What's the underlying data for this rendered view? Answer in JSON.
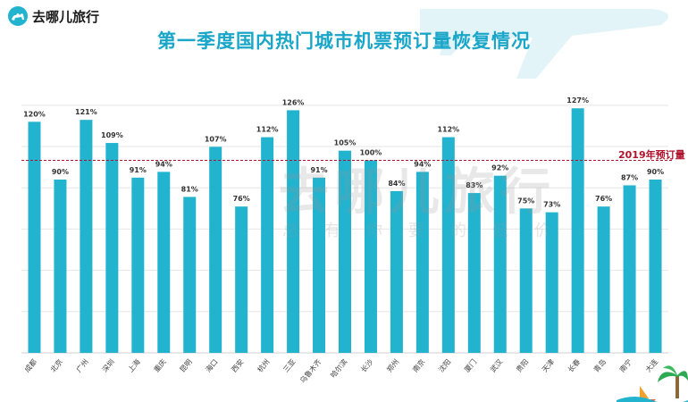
{
  "brand": {
    "name": "去哪儿旅行"
  },
  "watermark": {
    "main": "去哪儿旅行",
    "sub": "总有你要的低价"
  },
  "colors": {
    "bar": "#22b3cf",
    "title": "#1aa6c8",
    "reference": "#b1122c",
    "grid": "#e6e6e6"
  },
  "chart_data": {
    "type": "bar",
    "title": "第一季度国内热门城市机票预订量恢复情况",
    "xlabel": "",
    "ylabel": "",
    "ylim": [
      0,
      135
    ],
    "unit": "%",
    "reference_line": {
      "value": 100,
      "label": "2019年预订量"
    },
    "categories": [
      "成都",
      "北京",
      "广州",
      "深圳",
      "上海",
      "重庆",
      "昆明",
      "海口",
      "西安",
      "杭州",
      "三亚",
      "乌鲁木齐",
      "哈尔滨",
      "长沙",
      "郑州",
      "南京",
      "沈阳",
      "厦门",
      "武汉",
      "贵阳",
      "天津",
      "长春",
      "青岛",
      "南宁",
      "大连"
    ],
    "values": [
      120,
      90,
      121,
      109,
      91,
      94,
      81,
      107,
      76,
      112,
      126,
      91,
      105,
      100,
      84,
      94,
      112,
      83,
      92,
      75,
      73,
      127,
      76,
      87,
      90
    ],
    "value_labels": [
      "120%",
      "90%",
      "121%",
      "109%",
      "91%",
      "94%",
      "81%",
      "107%",
      "76%",
      "112%",
      "126%",
      "91%",
      "105%",
      "100%",
      "84%",
      "94%",
      "112%",
      "83%",
      "92%",
      "75%",
      "73%",
      "127%",
      "76%",
      "87%",
      "90%"
    ]
  }
}
